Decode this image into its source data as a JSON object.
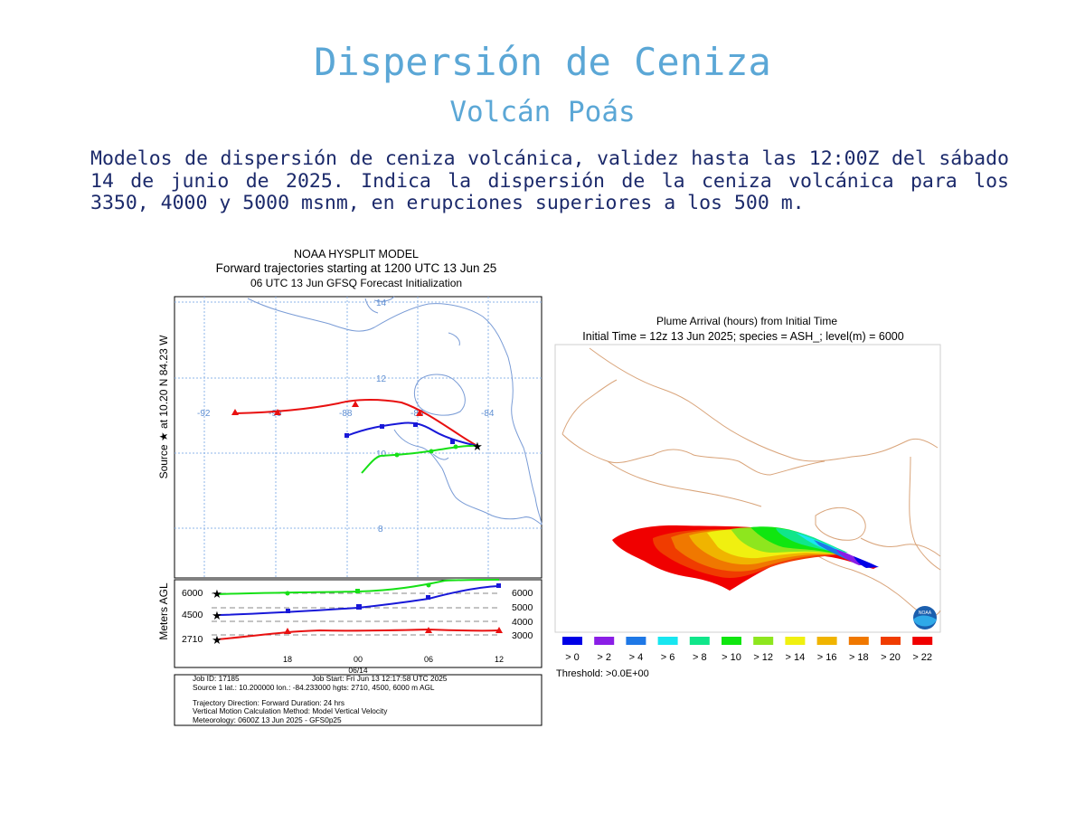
{
  "header": {
    "title": "Dispersión de Ceniza",
    "subtitle": "Volcán Poás",
    "description": "Modelos de dispersión de ceniza volcánica, validez hasta las 12:00Z del sábado 14 de junio de 2025. Indica la dispersión de la ceniza volcánica para los 3350, 4000 y 5000 msnm, en erupciones superiores a los 500 m."
  },
  "hysplit": {
    "title_line1": "NOAA HYSPLIT MODEL",
    "title_line2": "Forward trajectories starting at 1200 UTC 13 Jun 25",
    "title_line3": "06 UTC 13 Jun    GFSQ  Forecast Initialization",
    "side_label": "Source ★  at   10.20 N   84.23 W",
    "lon_labels": [
      "-92",
      "-90",
      "-88",
      "-86",
      "-84"
    ],
    "lat_labels": [
      "14",
      "12",
      "10",
      "8"
    ],
    "agl_label": "Meters AGL",
    "left_heights": [
      "6000",
      "4500",
      "2710"
    ],
    "right_heights": [
      "6000",
      "5000",
      "4000",
      "3000"
    ],
    "time_ticks": [
      "18",
      "00",
      "06",
      "12"
    ],
    "date_label": "06/14",
    "info": {
      "job_id": "Job ID: 17185",
      "job_start": "Job Start: Fri Jun 13 12:17:58 UTC 2025",
      "source": "Source 1 lat.: 10.200000  lon.: -84.233000  hgts: 2710, 4500, 6000 m AGL",
      "trajectory": "Trajectory Direction: Forward       Duration: 24 hrs",
      "vertical": "Vertical Motion Calculation Method:       Model Vertical Velocity",
      "meteorology": "Meteorology: 0600Z 13 Jun 2025 - GFS0p25"
    },
    "colors": {
      "red": "#e81010",
      "blue": "#1818d8",
      "green": "#16e016",
      "grid": "#8eb4e8",
      "coast": "#7a9cd6"
    }
  },
  "plume": {
    "title_line1": "Plume Arrival (hours) from Initial Time",
    "title_line2": "Initial Time = 12z 13 Jun 2025;  species = ASH_;  level(m) =  6000",
    "legend": [
      {
        "label": "> 0",
        "color": "#0000e6"
      },
      {
        "label": "> 2",
        "color": "#8a1ee6"
      },
      {
        "label": "> 4",
        "color": "#1e78e6"
      },
      {
        "label": "> 6",
        "color": "#18e6f0"
      },
      {
        "label": "> 8",
        "color": "#10e68a"
      },
      {
        "label": "> 10",
        "color": "#10e610"
      },
      {
        "label": "> 12",
        "color": "#8ee61e"
      },
      {
        "label": "> 14",
        "color": "#f0f010"
      },
      {
        "label": "> 16",
        "color": "#f0b400"
      },
      {
        "label": "> 18",
        "color": "#f07800"
      },
      {
        "label": "> 20",
        "color": "#f03c00"
      },
      {
        "label": "> 22",
        "color": "#f00000"
      }
    ],
    "threshold": "Threshold: >0.0E+00",
    "logo_text": "NOAA",
    "coast_color": "#d9a47a"
  }
}
